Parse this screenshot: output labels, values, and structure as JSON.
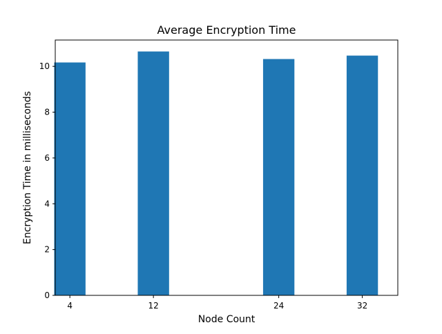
{
  "chart_data": {
    "type": "bar",
    "title": "Average Encryption Time",
    "xlabel": "Node Count",
    "ylabel": "Encryption Time in milliseconds",
    "x": [
      4,
      12,
      24,
      32
    ],
    "categories": [
      "4",
      "12",
      "24",
      "32"
    ],
    "values": [
      10.17,
      10.65,
      10.32,
      10.47
    ],
    "xlim": [
      2.6,
      35.4
    ],
    "ylim": [
      0,
      11.15
    ],
    "yticks": [
      0,
      2,
      4,
      6,
      8,
      10
    ],
    "bar_width_units": 3,
    "bar_color": "#1f77b4",
    "grid": false,
    "legend": "none"
  }
}
